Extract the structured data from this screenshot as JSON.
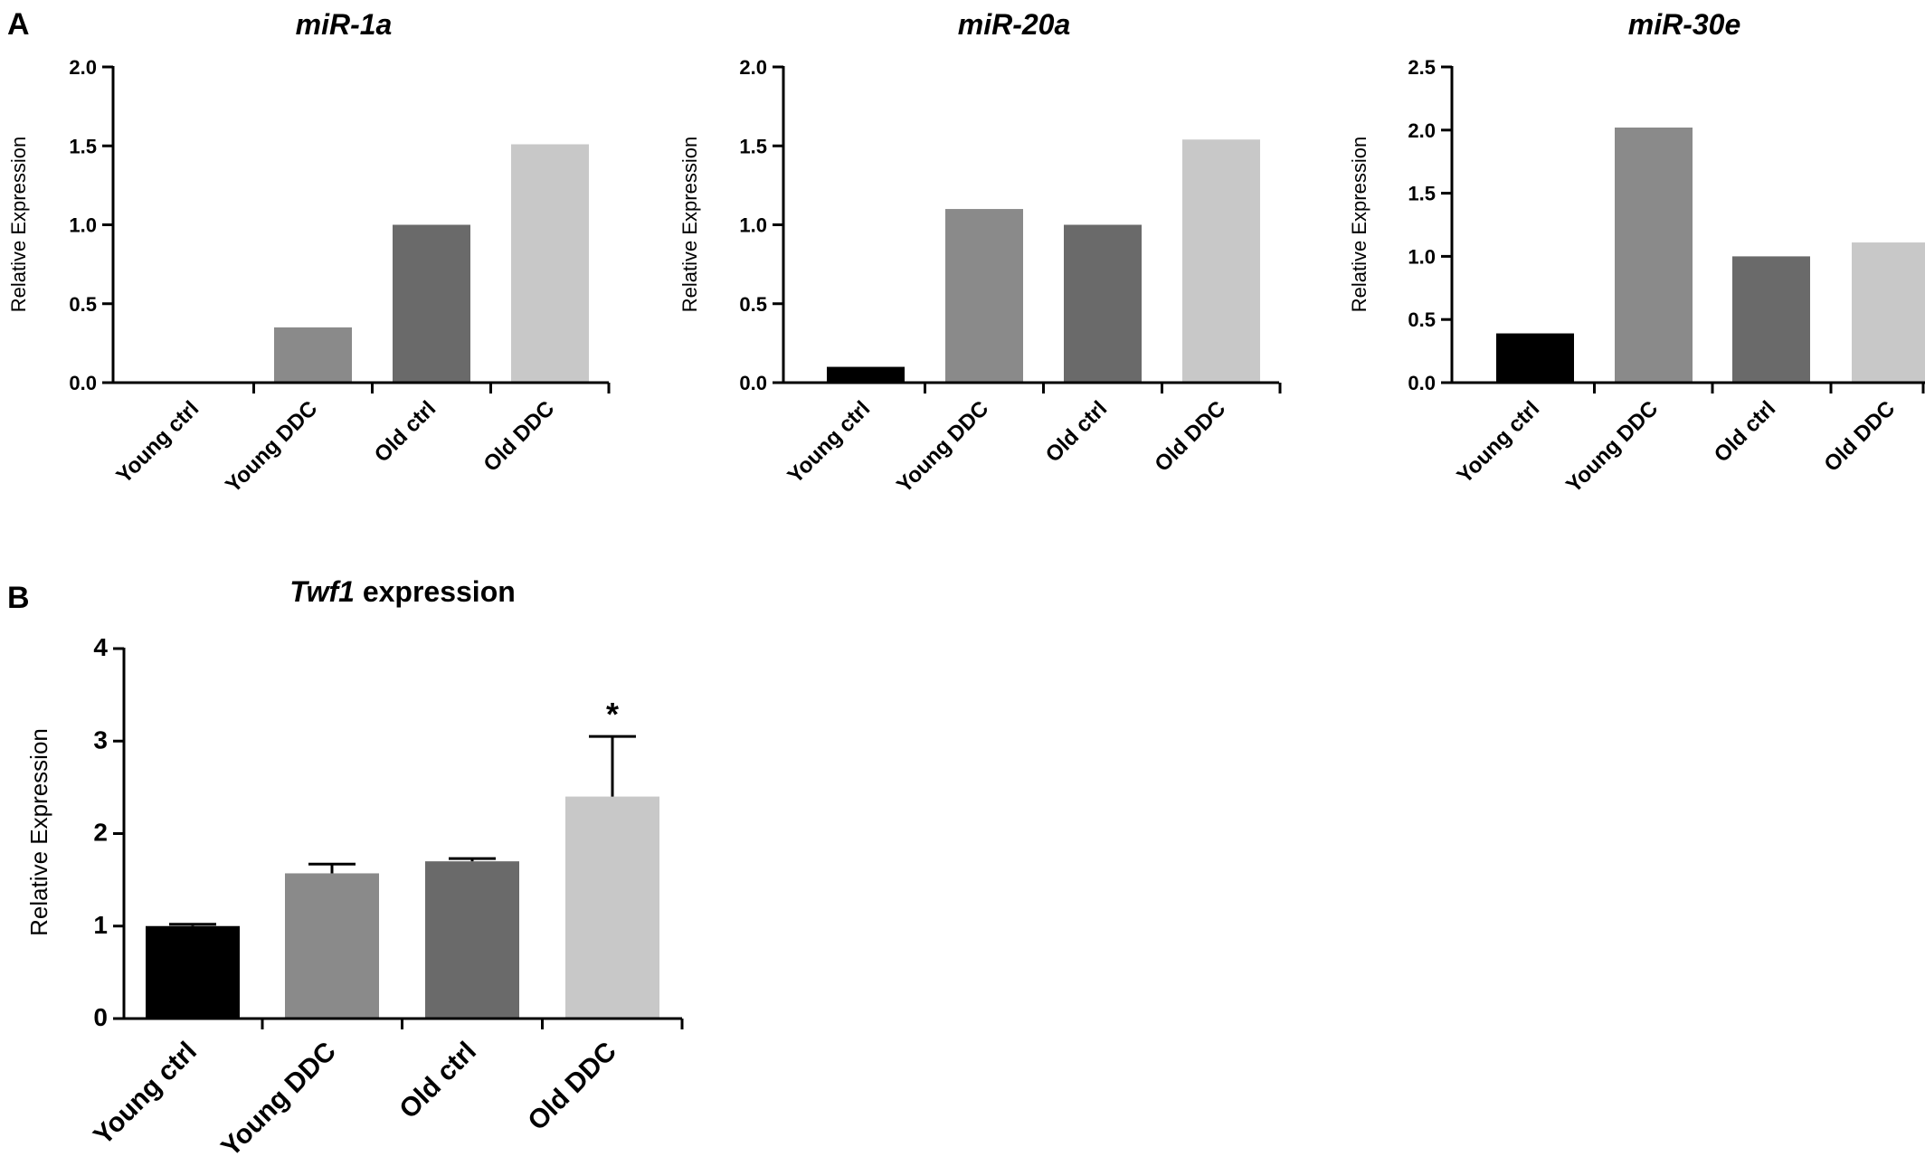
{
  "figure": {
    "panel_a_label": "A",
    "panel_b_label": "B"
  },
  "chart_data": [
    {
      "type": "bar",
      "panel": "A",
      "title": "miR-1a",
      "title_italic": true,
      "ylabel": "Relative Expression",
      "categories": [
        "Young ctrl",
        "Young DDC",
        "Old ctrl",
        "Old DDC"
      ],
      "values": [
        0,
        0.35,
        1.0,
        1.51
      ],
      "colors": [
        "#000000",
        "#8a8a8a",
        "#6a6a6a",
        "#c8c8c8"
      ],
      "ylim": [
        0,
        2.0
      ],
      "yticks": [
        "0.0",
        "0.5",
        "1.0",
        "1.5",
        "2.0"
      ]
    },
    {
      "type": "bar",
      "panel": "A",
      "title": "miR-20a",
      "title_italic": true,
      "ylabel": "Relative Expression",
      "categories": [
        "Young ctrl",
        "Young DDC",
        "Old ctrl",
        "Old DDC"
      ],
      "values": [
        0.1,
        1.1,
        1.0,
        1.54
      ],
      "colors": [
        "#000000",
        "#8a8a8a",
        "#6a6a6a",
        "#c8c8c8"
      ],
      "ylim": [
        0,
        2.0
      ],
      "yticks": [
        "0.0",
        "0.5",
        "1.0",
        "1.5",
        "2.0"
      ]
    },
    {
      "type": "bar",
      "panel": "A",
      "title": "miR-30e",
      "title_italic": true,
      "ylabel": "Relative Expression",
      "categories": [
        "Young ctrl",
        "Young DDC",
        "Old ctrl",
        "Old DDC"
      ],
      "values": [
        0.39,
        2.02,
        1.0,
        1.11
      ],
      "colors": [
        "#000000",
        "#8a8a8a",
        "#6a6a6a",
        "#c8c8c8"
      ],
      "ylim": [
        0,
        2.5
      ],
      "yticks": [
        "0.0",
        "0.5",
        "1.0",
        "1.5",
        "2.0",
        "2.5"
      ]
    },
    {
      "type": "bar",
      "panel": "B",
      "title_italic_part": "Twf1",
      "title_rest": " expression",
      "ylabel": "Relative Expression",
      "categories": [
        "Young ctrl",
        "Young DDC",
        "Old ctrl",
        "Old DDC"
      ],
      "values": [
        1.0,
        1.57,
        1.7,
        2.4
      ],
      "errors": [
        0.02,
        0.1,
        0.03,
        0.65
      ],
      "colors": [
        "#000000",
        "#8a8a8a",
        "#6a6a6a",
        "#c8c8c8"
      ],
      "ylim": [
        0,
        4
      ],
      "yticks": [
        "0",
        "1",
        "2",
        "3",
        "4"
      ],
      "significance": [
        "",
        "",
        "",
        "*"
      ]
    }
  ]
}
